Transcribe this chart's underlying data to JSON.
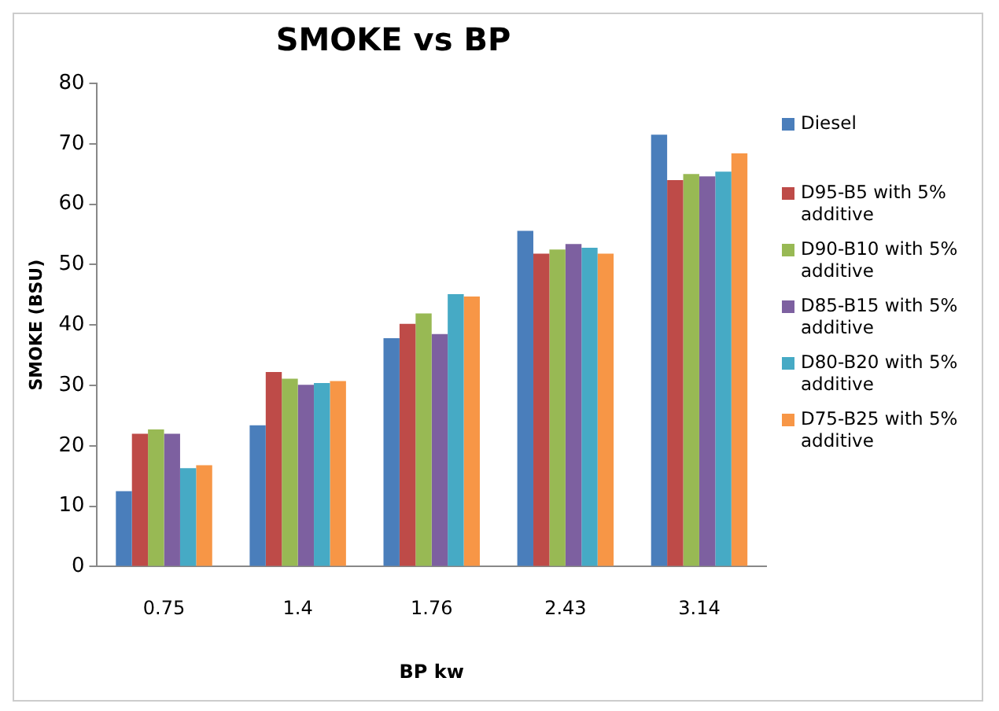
{
  "chart_data": {
    "type": "bar",
    "title": "SMOKE vs BP",
    "xlabel": "BP kw",
    "ylabel": "SMOKE (BSU)",
    "categories": [
      "0.75",
      "1.4",
      "1.76",
      "2.43",
      "3.14"
    ],
    "series": [
      {
        "name": "Diesel",
        "color": "#4a7ebb",
        "values": [
          12.5,
          23.4,
          37.8,
          55.6,
          71.5
        ]
      },
      {
        "name": "D95-B5 with 5% additive",
        "color": "#be4b48",
        "values": [
          22,
          32.2,
          40.2,
          51.8,
          64
        ]
      },
      {
        "name": "D90-B10 with 5% additive",
        "color": "#98b954",
        "values": [
          22.7,
          31.1,
          41.9,
          52.5,
          65
        ]
      },
      {
        "name": "D85-B15 with 5% additive",
        "color": "#7d60a0",
        "values": [
          22,
          30.1,
          38.5,
          53.4,
          64.6
        ]
      },
      {
        "name": "D80-B20 with 5% additive",
        "color": "#46aac5",
        "values": [
          16.3,
          30.4,
          45.1,
          52.8,
          65.4
        ]
      },
      {
        "name": "D75-B25 with 5% additive",
        "color": "#f79646",
        "values": [
          16.8,
          30.7,
          44.7,
          51.8,
          68.4
        ]
      }
    ],
    "ylim": [
      0,
      80
    ],
    "yticks": [
      0,
      10,
      20,
      30,
      40,
      50,
      60,
      70,
      80
    ],
    "grid": false,
    "legend": "right"
  }
}
